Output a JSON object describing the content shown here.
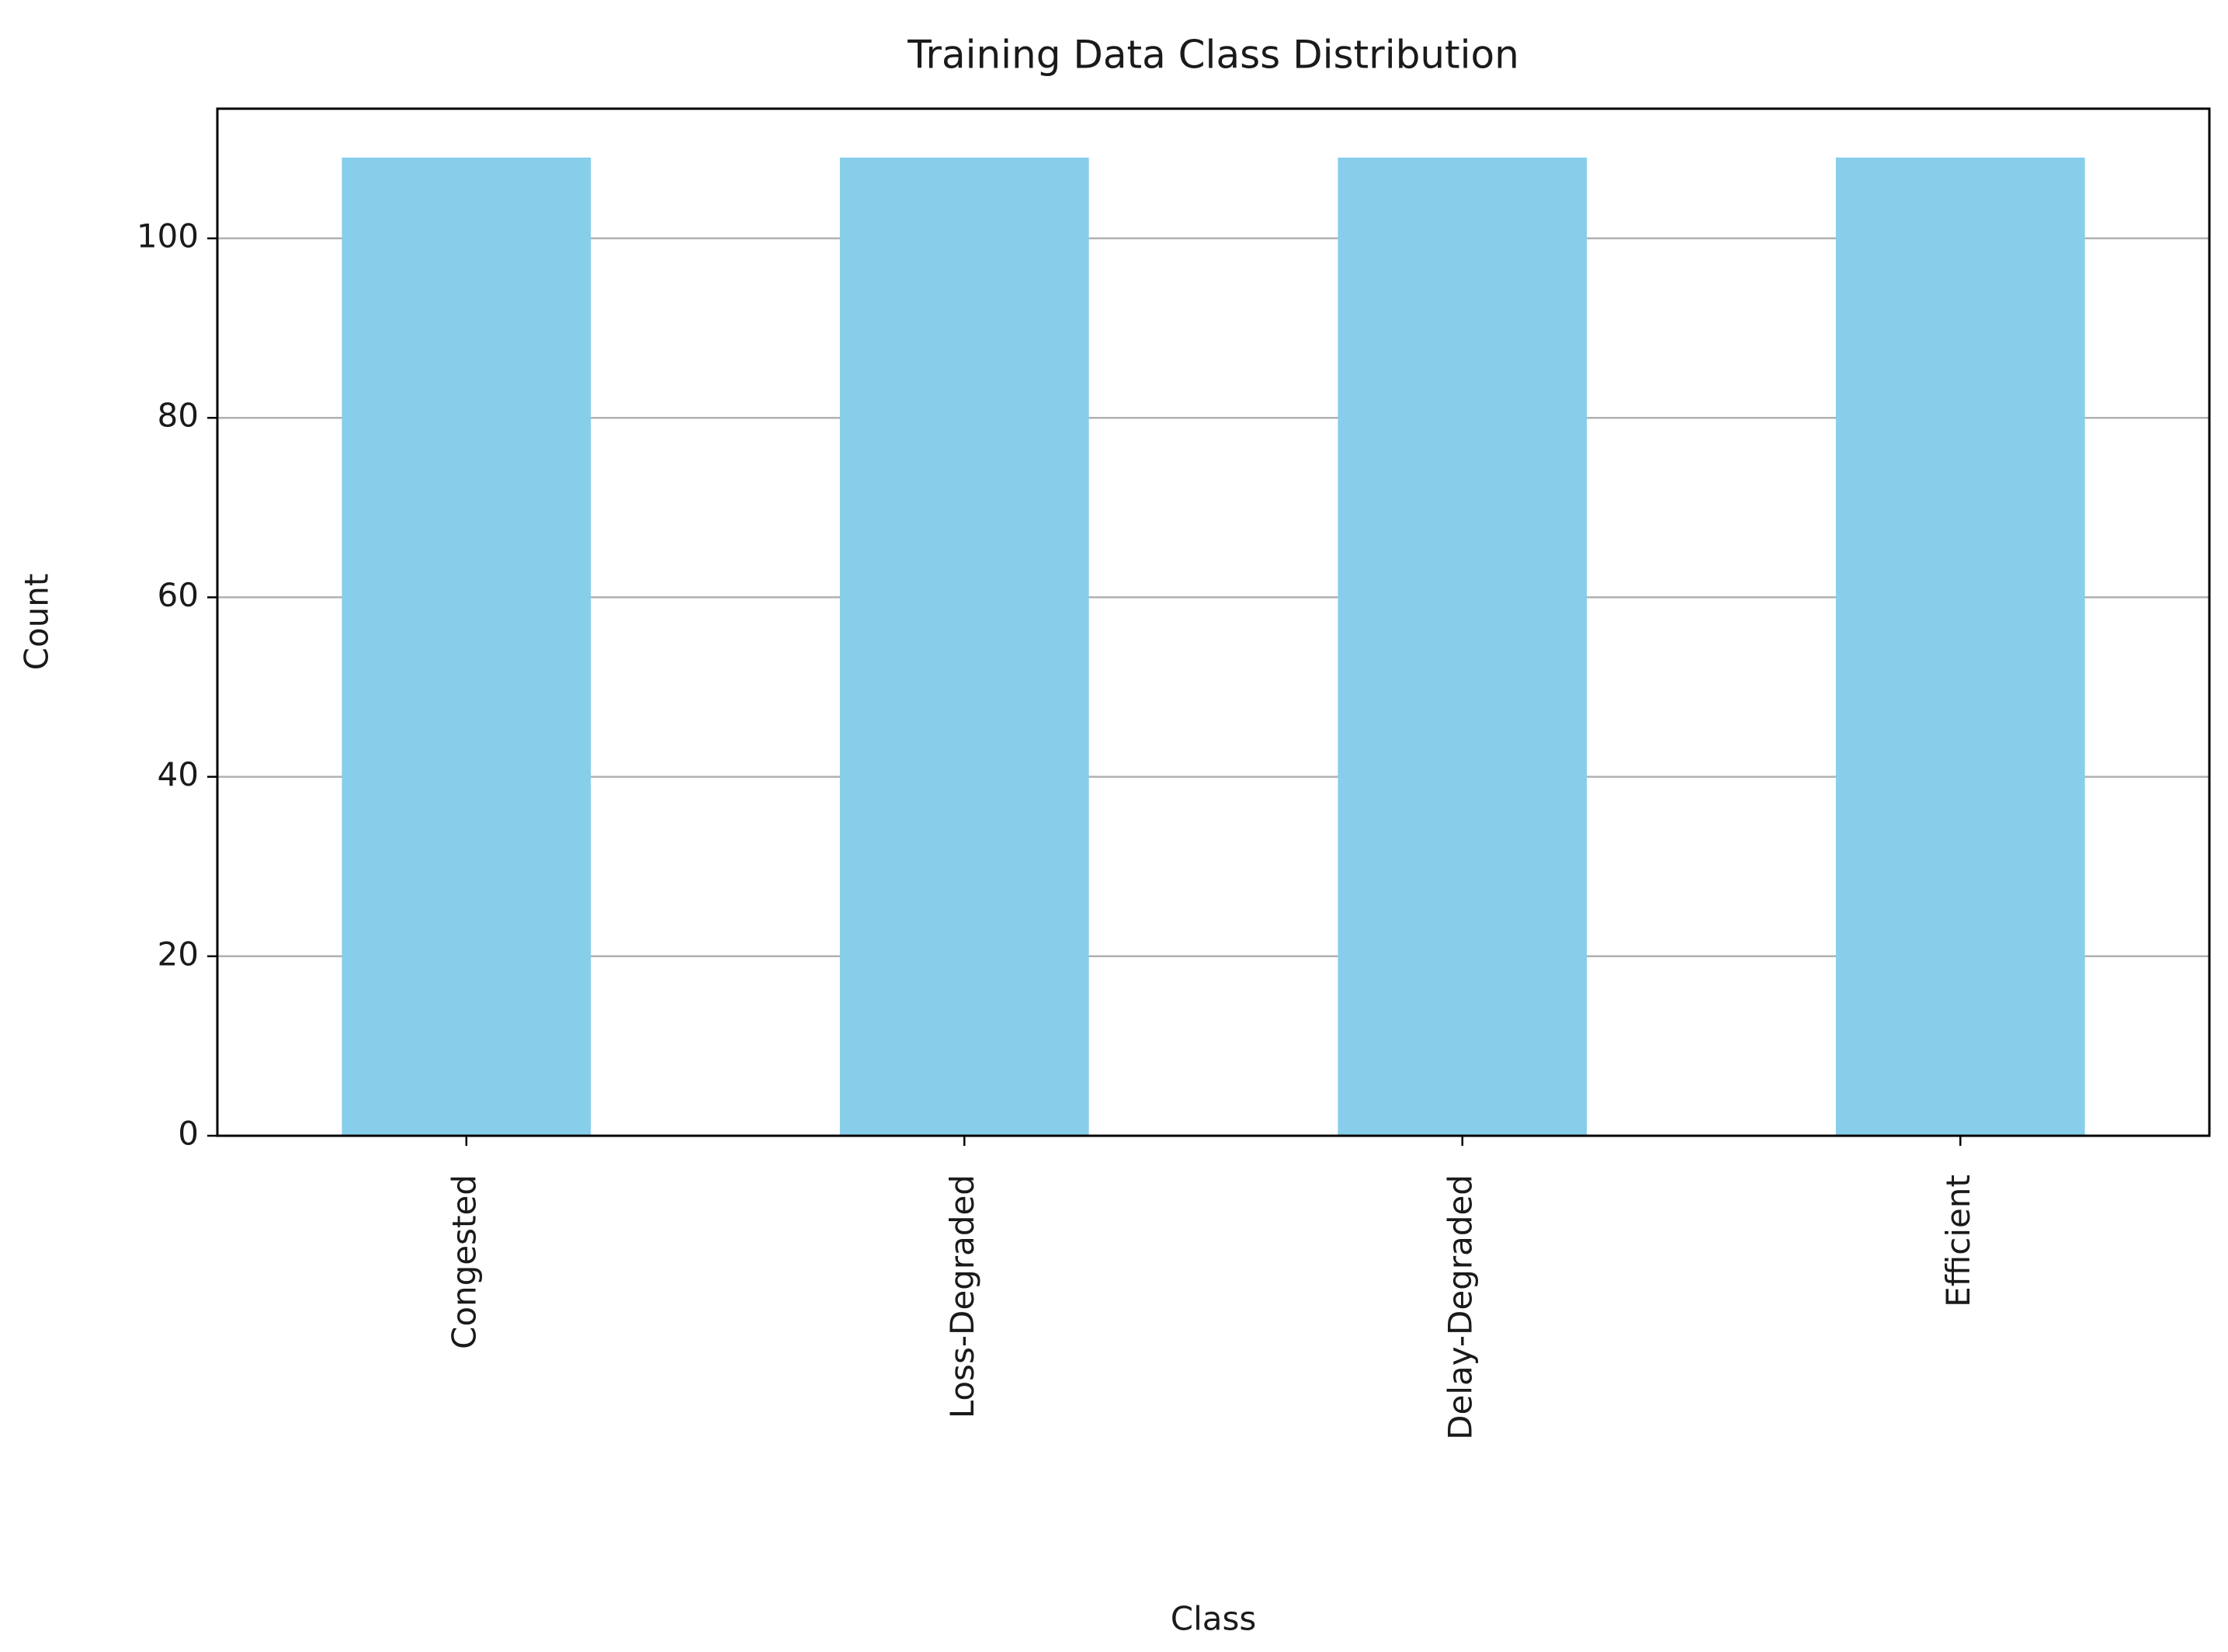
{
  "chart_data": {
    "type": "bar",
    "title": "Training Data Class Distribution",
    "x_label": "Class",
    "y_label": "Count",
    "categories": [
      "Congested",
      "Loss-Degraded",
      "Delay-Degraded",
      "Efficient"
    ],
    "values": [
      109,
      109,
      109,
      109
    ],
    "color": "#87ceeb",
    "ylim": [
      0,
      114.45
    ],
    "yticks": [
      0,
      20,
      40,
      60,
      80,
      100
    ],
    "grid": true
  }
}
